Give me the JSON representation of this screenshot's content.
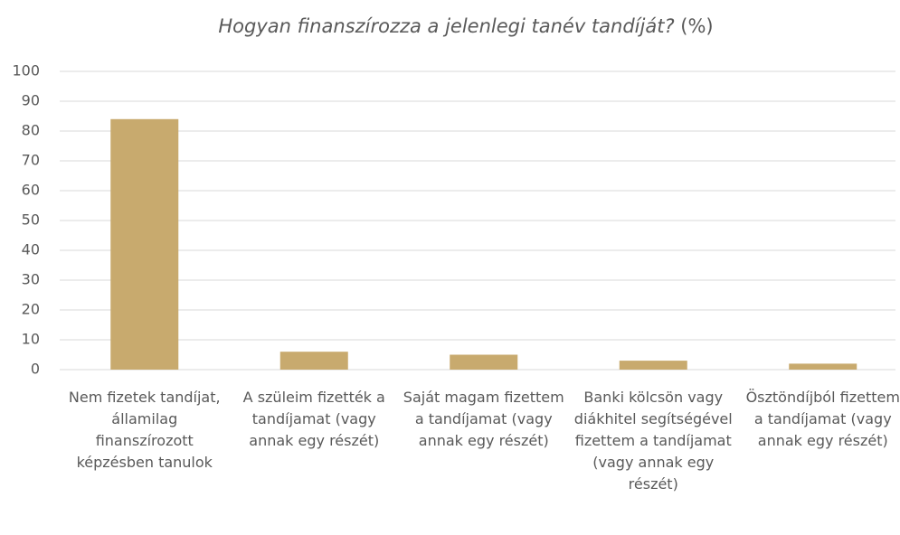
{
  "chart_data": {
    "type": "bar",
    "title": "Hogyan finanszírozza a jelenlegi tanév tandíját?",
    "subtitle": "(%)",
    "categories": [
      "Nem fizetek tandíjat, államilag finanszírozott képzésben tanulok",
      "A szüleim fizették a tandíjamat (vagy annak egy részét)",
      "Saját magam fizettem a tandíjamat (vagy annak egy részét)",
      "Banki kölcsön vagy diákhitel segítségével fizettem a tandíjamat (vagy annak egy részét)",
      "Ösztöndíjból fizettem a tandíjamat (vagy annak egy részét)"
    ],
    "values": [
      84,
      6,
      5,
      3,
      2
    ],
    "color": "#c8aa6e",
    "ylim": [
      0,
      100
    ],
    "yticks": [
      0,
      10,
      20,
      30,
      40,
      50,
      60,
      70,
      80,
      90,
      100
    ],
    "grid": true
  }
}
